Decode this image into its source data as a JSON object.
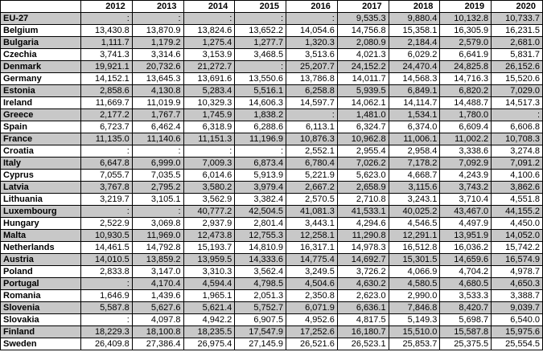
{
  "table": {
    "header": [
      "2012",
      "2013",
      "2014",
      "2015",
      "2016",
      "2017",
      "2018",
      "2019",
      "2020"
    ],
    "rows": [
      [
        "EU-27",
        ":",
        ":",
        ":",
        ":",
        ":",
        "9,535.3",
        "9,880.4",
        "10,132.8",
        "10,733.7"
      ],
      [
        "Belgium",
        "13,430.8",
        "13,870.9",
        "13,824.6",
        "13,652.2",
        "14,054.6",
        "14,756.8",
        "15,358.1",
        "16,305.9",
        "16,231.5"
      ],
      [
        "Bulgaria",
        "1,111.7",
        "1,179.2",
        "1,275.4",
        "1,277.7",
        "1,320.3",
        "2,080.9",
        "2,184.4",
        "2,579.0",
        "2,681.0"
      ],
      [
        "Czechia",
        "3,741.3",
        "3,314.6",
        "3,153.9",
        "3,468.5",
        "3,513.6",
        "4,021.3",
        "6,029.2",
        "6,641.9",
        "5,831.7"
      ],
      [
        "Denmark",
        "19,921.1",
        "20,732.6",
        "21,272.7",
        ":",
        "25,207.7",
        "24,152.2",
        "24,470.4",
        "24,825.8",
        "26,152.6"
      ],
      [
        "Germany",
        "14,152.1",
        "13,645.3",
        "13,691.6",
        "13,550.6",
        "13,786.8",
        "14,011.7",
        "14,568.3",
        "14,716.3",
        "15,520.6"
      ],
      [
        "Estonia",
        "2,858.6",
        "4,130.8",
        "5,283.4",
        "5,516.1",
        "6,258.8",
        "5,939.5",
        "6,849.1",
        "6,820.2",
        "7,029.0"
      ],
      [
        "Ireland",
        "11,669.7",
        "11,019.9",
        "10,329.3",
        "14,606.3",
        "14,597.7",
        "14,062.1",
        "14,114.7",
        "14,488.7",
        "14,517.3"
      ],
      [
        "Greece",
        "2,177.2",
        "1,767.7",
        "1,745.9",
        "1,838.2",
        ":",
        "1,481.0",
        "1,534.1",
        "1,780.0",
        ":"
      ],
      [
        "Spain",
        "6,723.7",
        "6,462.4",
        "6,318.9",
        "6,288.6",
        "6,113.1",
        "6,324.7",
        "6,374.0",
        "6,609.4",
        "6,606.8"
      ],
      [
        "France",
        "11,135.0",
        "11,140.6",
        "11,151.3",
        "11,196.9",
        "10,876.3",
        "10,962.8",
        "11,006.1",
        "11,002.2",
        "10,708.3"
      ],
      [
        "Croatia",
        ":",
        ":",
        ":",
        ":",
        "2,552.1",
        "2,955.4",
        "2,958.4",
        "3,338.6",
        "3,274.8"
      ],
      [
        "Italy",
        "6,647.8",
        "6,999.0",
        "7,009.3",
        "6,873.4",
        "6,780.4",
        "7,026.2",
        "7,178.2",
        "7,092.9",
        "7,091.2"
      ],
      [
        "Cyprus",
        "7,055.7",
        "7,035.5",
        "6,014.6",
        "5,913.9",
        "5,221.9",
        "5,623.0",
        "4,668.7",
        "4,243.9",
        "4,100.6"
      ],
      [
        "Latvia",
        "3,767.8",
        "2,795.2",
        "3,580.2",
        "3,979.4",
        "2,667.2",
        "2,658.9",
        "3,115.6",
        "3,743.2",
        "3,862.6"
      ],
      [
        "Lithuania",
        "3,219.7",
        "3,105.1",
        "3,562.9",
        "3,382.4",
        "2,570.5",
        "2,710.8",
        "3,243.1",
        "3,710.4",
        "4,551.8"
      ],
      [
        "Luxembourg",
        ":",
        ":",
        "40,777.2",
        "42,504.5",
        "41,081.3",
        "41,533.1",
        "40,025.2",
        "43,467.0",
        "44,155.2"
      ],
      [
        "Hungary",
        "2,522.9",
        "3,069.8",
        "2,937.9",
        "2,801.4",
        "3,443.1",
        "4,294.6",
        "4,546.5",
        "4,497.9",
        "4,450.0"
      ],
      [
        "Malta",
        "10,930.5",
        "11,969.0",
        "12,473.8",
        "12,755.3",
        "12,258.1",
        "11,290.8",
        "12,291.1",
        "13,951.9",
        "14,052.0"
      ],
      [
        "Netherlands",
        "14,461.5",
        "14,792.8",
        "15,193.7",
        "14,810.9",
        "16,317.1",
        "14,978.3",
        "16,512.8",
        "16,036.2",
        "15,742.2"
      ],
      [
        "Austria",
        "14,010.5",
        "13,859.2",
        "13,959.5",
        "14,333.6",
        "14,775.4",
        "14,692.7",
        "15,301.5",
        "14,659.6",
        "16,574.9"
      ],
      [
        "Poland",
        "2,833.8",
        "3,147.0",
        "3,310.3",
        "3,562.4",
        "3,249.5",
        "3,726.2",
        "4,066.9",
        "4,704.2",
        "4,978.7"
      ],
      [
        "Portugal",
        ":",
        "4,170.4",
        "4,594.4",
        "4,798.5",
        "4,504.6",
        "4,630.2",
        "4,580.5",
        "4,680.5",
        "4,650.3"
      ],
      [
        "Romania",
        "1,646.9",
        "1,439.6",
        "1,965.1",
        "2,051.3",
        "2,350.8",
        "2,623.0",
        "2,990.0",
        "3,533.3",
        "3,388.7"
      ],
      [
        "Slovenia",
        "5,587.8",
        "5,627.6",
        "5,621.4",
        "5,752.7",
        "6,071.9",
        "6,636.1",
        "7,846.8",
        "8,420.7",
        "9,039.7"
      ],
      [
        "Slovakia",
        ":",
        "4,097.8",
        "4,942.2",
        "6,907.5",
        "4,952.6",
        "4,817.5",
        "5,149.3",
        "5,698.7",
        "6,540.0"
      ],
      [
        "Finland",
        "18,229.3",
        "18,100.8",
        "18,235.5",
        "17,547.9",
        "17,252.6",
        "16,180.7",
        "15,510.0",
        "15,587.8",
        "15,975.6"
      ],
      [
        "Sweden",
        "26,409.8",
        "27,386.4",
        "26,975.4",
        "27,145.9",
        "26,521.6",
        "26,523.1",
        "25,853.7",
        "25,375.5",
        "25,554.5"
      ]
    ]
  }
}
